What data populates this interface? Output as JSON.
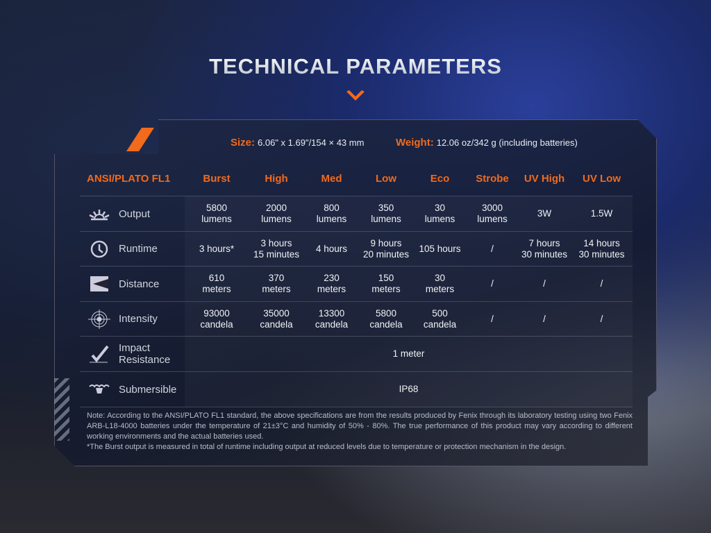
{
  "title": "TECHNICAL PARAMETERS",
  "colors": {
    "accent": "#f26a1b"
  },
  "size": {
    "label": "Size:",
    "value": "6.06\" x 1.69\"/154 × 43 mm"
  },
  "weight": {
    "label": "Weight:",
    "value": "12.06 oz/342 g (including batteries)"
  },
  "table": {
    "header": "ANSI/PLATO FL1",
    "columns": [
      "Burst",
      "High",
      "Med",
      "Low",
      "Eco",
      "Strobe",
      "UV High",
      "UV Low"
    ],
    "rows": [
      {
        "label": "Output",
        "icon": "sunburst-icon",
        "values": [
          "5800\nlumens",
          "2000\nlumens",
          "800\nlumens",
          "350\nlumens",
          "30\nlumens",
          "3000\nlumens",
          "3W",
          "1.5W"
        ]
      },
      {
        "label": "Runtime",
        "icon": "clock-icon",
        "values": [
          "3 hours*",
          "3 hours\n15 minutes",
          "4 hours",
          "9 hours\n20 minutes",
          "105 hours",
          "/",
          "7 hours\n30 minutes",
          "14 hours\n30 minutes"
        ]
      },
      {
        "label": "Distance",
        "icon": "distance-icon",
        "values": [
          "610\nmeters",
          "370\nmeters",
          "230\nmeters",
          "150\nmeters",
          "30\nmeters",
          "/",
          "/",
          "/"
        ]
      },
      {
        "label": "Intensity",
        "icon": "target-icon",
        "values": [
          "93000\ncandela",
          "35000\ncandela",
          "13300\ncandela",
          "5800\ncandela",
          "500\ncandela",
          "/",
          "/",
          "/"
        ]
      },
      {
        "label": "Impact\nResistance",
        "icon": "impact-icon",
        "span": "1 meter"
      },
      {
        "label": "Submersible",
        "icon": "water-icon",
        "span": "IP68"
      }
    ]
  },
  "note": [
    "Note: According to the ANSI/PLATO FL1 standard, the above specifications are from the results produced by Fenix through its laboratory testing using two Fenix ARB-L18-4000 batteries under the temperature of 21±3°C and humidity of 50% - 80%. The true performance of this product may vary according to different working environments and the actual batteries used.",
    "*The Burst output is measured in total of runtime including output at reduced levels due to temperature or protection mechanism in the design."
  ]
}
